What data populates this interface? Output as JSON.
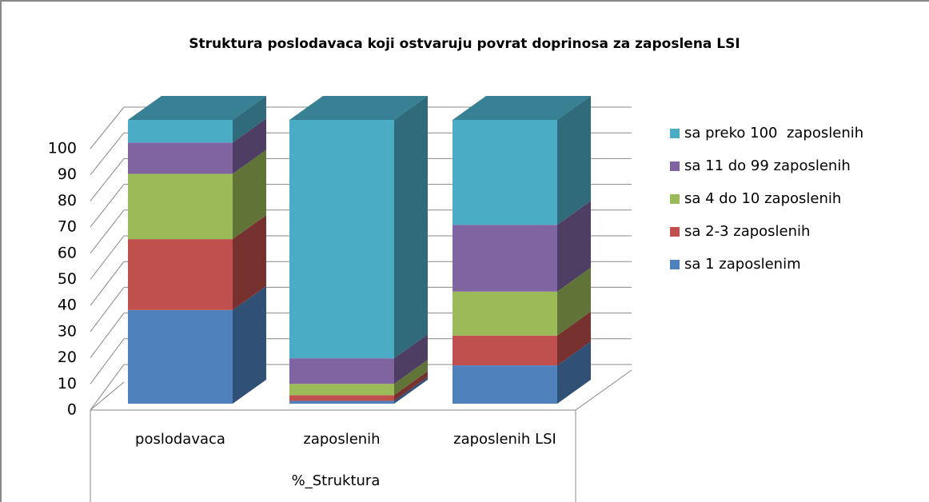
{
  "chart_data": {
    "type": "bar3d_stacked",
    "title": "Struktura poslodavaca koji ostvaruju povrat doprinosa za zaposlena LSI",
    "x_label": "%_Struktura",
    "categories": [
      "poslodavaca",
      "zaposlenih",
      "zaposlenih LSI"
    ],
    "series": [
      {
        "name": "sa 1 zaposlenim",
        "color": "#4f81bd",
        "values": [
          33,
          1,
          13.5
        ]
      },
      {
        "name": "sa 2-3 zaposlenih",
        "color": "#c0504d",
        "values": [
          25,
          2,
          10.5
        ]
      },
      {
        "name": "sa 4 do 10 zaposlenih",
        "color": "#9bbb59",
        "values": [
          23,
          4,
          15.5
        ]
      },
      {
        "name": "sa 11 do 99 zaposlenih",
        "color": "#8064a2",
        "values": [
          11,
          9,
          23.5
        ]
      },
      {
        "name": "sa preko 100  zaposlenih",
        "color": "#4bacc6",
        "values": [
          8,
          84,
          37
        ]
      }
    ],
    "ylim": [
      0,
      100
    ],
    "yticks": [
      0,
      10,
      20,
      30,
      40,
      50,
      60,
      70,
      80,
      90,
      100
    ],
    "grid": true,
    "legend": "right"
  }
}
